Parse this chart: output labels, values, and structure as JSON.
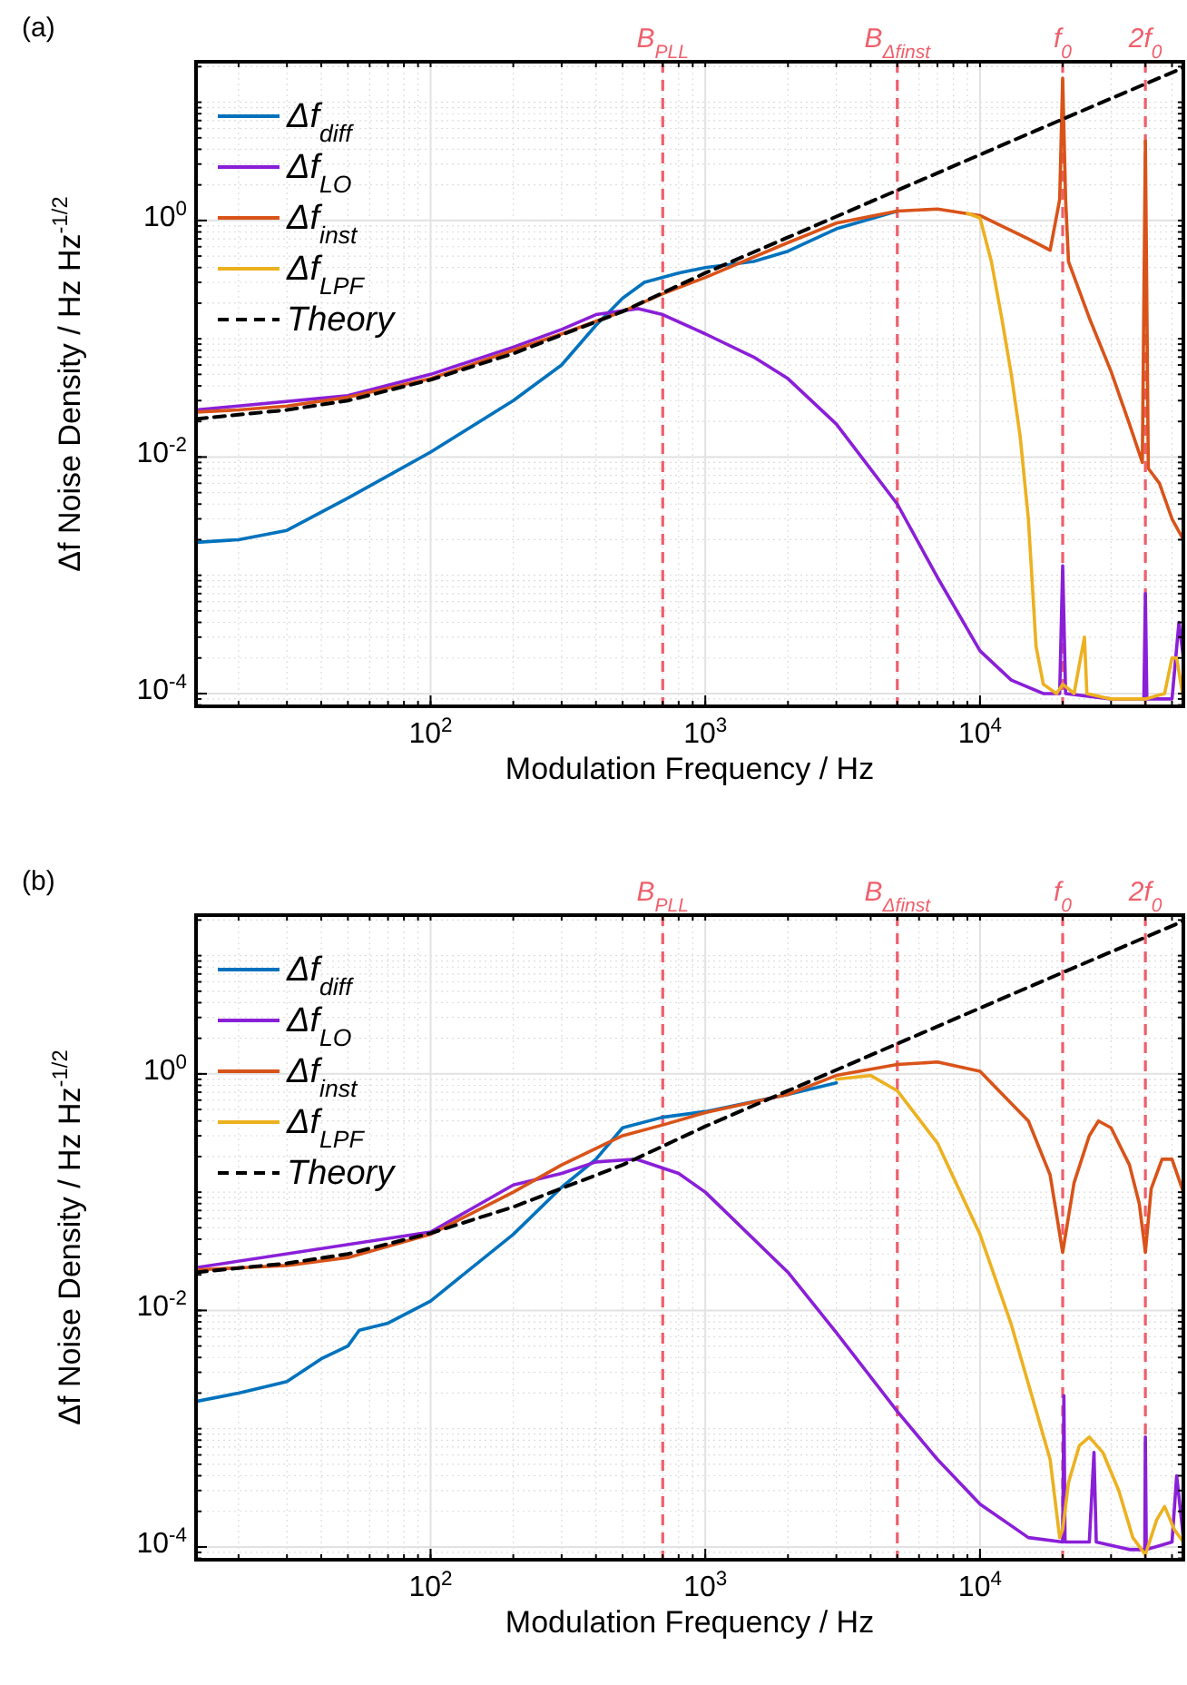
{
  "chart_data": [
    {
      "type": "line",
      "title": "(a)",
      "xlabel": "Modulation Frequency / Hz",
      "ylabel": "Δf Noise Density / Hz Hz$^{-1/2}$",
      "log": "xy",
      "grid": true,
      "legend": "top left",
      "xlim": [
        14,
        55000
      ],
      "ylim": [
        7.8e-05,
        22
      ],
      "xticks": [
        {
          "value": 100,
          "label": "10$^{2}$"
        },
        {
          "value": 1000,
          "label": "10$^{3}$"
        },
        {
          "value": 10000,
          "label": "10$^{4}$"
        }
      ],
      "yticks": [
        {
          "value": 0.0001,
          "label": "10$^{-4}$"
        },
        {
          "value": 0.01,
          "label": "10$^{-2}$"
        },
        {
          "value": 1,
          "label": "10$^{0}$"
        }
      ],
      "ref_lines": [
        {
          "axis": "x",
          "value": 700,
          "label": "B$_{PLL}$",
          "color": "#ef5f6b",
          "line_style": "dashed"
        },
        {
          "axis": "x",
          "value": 5000,
          "label": "B$_{Δf}$$_{inst}$",
          "color": "#ef5f6b",
          "line_style": "dashed"
        },
        {
          "axis": "x",
          "value": 20000,
          "label": "f$_{0}$",
          "color": "#ef5f6b",
          "line_style": "dashed"
        },
        {
          "axis": "x",
          "value": 40000,
          "label": "2f$_{0}$",
          "color": "#ef5f6b",
          "line_style": "dashed"
        }
      ],
      "series": [
        {
          "name": "Δf$_{diff}$",
          "color": "#0072bd",
          "x": [
            14,
            20,
            30,
            50,
            100,
            200,
            300,
            400,
            500,
            600,
            800,
            1000,
            1500,
            2000,
            3000,
            5000
          ],
          "values": [
            0.0019,
            0.002,
            0.0024,
            0.0045,
            0.011,
            0.03,
            0.06,
            0.13,
            0.22,
            0.3,
            0.36,
            0.4,
            0.45,
            0.55,
            0.85,
            1.2
          ]
        },
        {
          "name": "Δf$_{LO}$",
          "color": "#8a1fd8",
          "x": [
            14,
            50,
            100,
            200,
            300,
            400,
            570,
            700,
            1000,
            1500,
            2000,
            3000,
            5000,
            7000,
            10000,
            13000,
            17000,
            19500,
            20000,
            20500,
            30000,
            39500,
            40000,
            40500,
            50000,
            53000,
            55000
          ],
          "values": [
            0.025,
            0.033,
            0.05,
            0.085,
            0.12,
            0.16,
            0.18,
            0.16,
            0.11,
            0.07,
            0.046,
            0.019,
            0.004,
            0.00096,
            0.00023,
            0.00013,
            0.0001,
            0.0001,
            0.0012,
            0.0001,
            9e-05,
            9e-05,
            0.0007,
            9e-05,
            9e-05,
            0.0004,
            0.0002
          ]
        },
        {
          "name": "Δf$_{inst}$",
          "color": "#d95319",
          "x": [
            14,
            20,
            30,
            50,
            100,
            200,
            300,
            500,
            700,
            1000,
            2000,
            3000,
            5000,
            7000,
            10000,
            15000,
            18000,
            19500,
            20000,
            20500,
            21000,
            25000,
            30000,
            35000,
            39000,
            40000,
            41000,
            45000,
            50000,
            55000
          ],
          "values": [
            0.024,
            0.025,
            0.027,
            0.032,
            0.046,
            0.08,
            0.11,
            0.17,
            0.24,
            0.33,
            0.65,
            0.95,
            1.2,
            1.25,
            1.1,
            0.7,
            0.56,
            1.5,
            16,
            1.5,
            0.45,
            0.15,
            0.053,
            0.019,
            0.009,
            4.7,
            0.008,
            0.006,
            0.003,
            0.002
          ]
        },
        {
          "name": "Δf$_{LPF}$",
          "color": "#edb120",
          "x": [
            9000,
            10000,
            11000,
            12000,
            13000,
            14000,
            15000,
            16000,
            17000,
            19000,
            20000,
            22000,
            24000,
            24500,
            30000,
            40000,
            47000,
            50000,
            52000,
            55000
          ],
          "values": [
            1.15,
            1.05,
            0.45,
            0.15,
            0.05,
            0.015,
            0.003,
            0.00025,
            0.00012,
            0.0001,
            0.00012,
            0.0001,
            0.0003,
            0.0001,
            9e-05,
            9e-05,
            0.0001,
            0.0002,
            0.0002,
            9e-05
          ]
        },
        {
          "name": "Theory",
          "color": "#000000",
          "line_style": "dashed",
          "x": [
            14,
            30,
            50,
            100,
            200,
            500,
            1000,
            2000,
            5000,
            20000,
            55000
          ],
          "values": [
            0.021,
            0.025,
            0.03,
            0.045,
            0.075,
            0.17,
            0.36,
            0.72,
            1.8,
            7.2,
            19.6
          ]
        }
      ]
    },
    {
      "type": "line",
      "title": "(b)",
      "xlabel": "Modulation Frequency / Hz",
      "ylabel": "Δf Noise Density / Hz Hz$^{-1/2}$",
      "log": "xy",
      "grid": true,
      "legend": "top left",
      "xlim": [
        14,
        55000
      ],
      "ylim": [
        7.8e-05,
        22
      ],
      "xticks": [
        {
          "value": 100,
          "label": "10$^{2}$"
        },
        {
          "value": 1000,
          "label": "10$^{3}$"
        },
        {
          "value": 10000,
          "label": "10$^{4}$"
        }
      ],
      "yticks": [
        {
          "value": 0.0001,
          "label": "10$^{-4}$"
        },
        {
          "value": 0.01,
          "label": "10$^{-2}$"
        },
        {
          "value": 1,
          "label": "10$^{0}$"
        }
      ],
      "ref_lines": [
        {
          "axis": "x",
          "value": 700,
          "label": "B$_{PLL}$",
          "color": "#ef5f6b",
          "line_style": "dashed"
        },
        {
          "axis": "x",
          "value": 5000,
          "label": "B$_{Δf}$$_{inst}$",
          "color": "#ef5f6b",
          "line_style": "dashed"
        },
        {
          "axis": "x",
          "value": 20000,
          "label": "f$_{0}$",
          "color": "#ef5f6b",
          "line_style": "dashed"
        },
        {
          "axis": "x",
          "value": 40000,
          "label": "2f$_{0}$",
          "color": "#ef5f6b",
          "line_style": "dashed"
        }
      ],
      "series": [
        {
          "name": "Δf$_{diff}$",
          "color": "#0072bd",
          "x": [
            14,
            20,
            30,
            40,
            50,
            55,
            70,
            100,
            200,
            300,
            400,
            500,
            700,
            1000,
            2000,
            3000
          ],
          "values": [
            0.0017,
            0.002,
            0.0025,
            0.0039,
            0.005,
            0.0068,
            0.0078,
            0.012,
            0.044,
            0.11,
            0.19,
            0.35,
            0.43,
            0.48,
            0.67,
            0.84
          ]
        },
        {
          "name": "Δf$_{LO}$",
          "color": "#8a1fd8",
          "x": [
            14,
            100,
            200,
            300,
            400,
            560,
            800,
            1000,
            2000,
            3000,
            5000,
            7000,
            10000,
            15000,
            20000,
            20200,
            20400,
            25000,
            26000,
            26500,
            35000,
            39800,
            40000,
            40300,
            50000,
            52000,
            55000
          ],
          "values": [
            0.023,
            0.046,
            0.115,
            0.144,
            0.18,
            0.19,
            0.144,
            0.1,
            0.021,
            0.0065,
            0.0014,
            0.00055,
            0.00023,
            0.00012,
            0.00011,
            0.0019,
            0.00011,
            0.00011,
            0.00063,
            0.00011,
            9.5e-05,
            9.5e-05,
            0.00085,
            9.5e-05,
            0.00011,
            0.0004,
            0.00012
          ]
        },
        {
          "name": "Δf$_{inst}$",
          "color": "#d95319",
          "x": [
            14,
            30,
            50,
            100,
            200,
            300,
            500,
            700,
            1000,
            2000,
            3000,
            5000,
            7000,
            10000,
            15000,
            18000,
            20000,
            22000,
            25000,
            27000,
            30000,
            35000,
            38000,
            40000,
            42000,
            46000,
            50000,
            55000
          ],
          "values": [
            0.022,
            0.024,
            0.028,
            0.044,
            0.1,
            0.17,
            0.3,
            0.37,
            0.47,
            0.67,
            0.97,
            1.2,
            1.26,
            1.05,
            0.4,
            0.14,
            0.031,
            0.12,
            0.3,
            0.4,
            0.35,
            0.17,
            0.08,
            0.031,
            0.107,
            0.19,
            0.19,
            0.1
          ]
        },
        {
          "name": "Δf$_{LPF}$",
          "color": "#edb120",
          "x": [
            3000,
            4000,
            5000,
            7000,
            10000,
            13000,
            15000,
            18000,
            19500,
            20000,
            21000,
            23000,
            25000,
            28000,
            32000,
            36000,
            40000,
            44000,
            47000,
            51000,
            55000
          ],
          "values": [
            0.9,
            0.97,
            0.72,
            0.26,
            0.044,
            0.0076,
            0.0024,
            0.00055,
            0.00012,
            0.00014,
            0.00035,
            0.00072,
            0.00085,
            0.00063,
            0.0003,
            0.00012,
            8.6e-05,
            0.00017,
            0.00022,
            0.00014,
            0.00011
          ]
        },
        {
          "name": "Theory",
          "color": "#000000",
          "line_style": "dashed",
          "x": [
            14,
            30,
            50,
            100,
            200,
            500,
            1000,
            2000,
            5000,
            20000,
            55000
          ],
          "values": [
            0.021,
            0.025,
            0.03,
            0.045,
            0.075,
            0.17,
            0.36,
            0.72,
            1.8,
            7.2,
            19.6
          ]
        }
      ]
    }
  ]
}
